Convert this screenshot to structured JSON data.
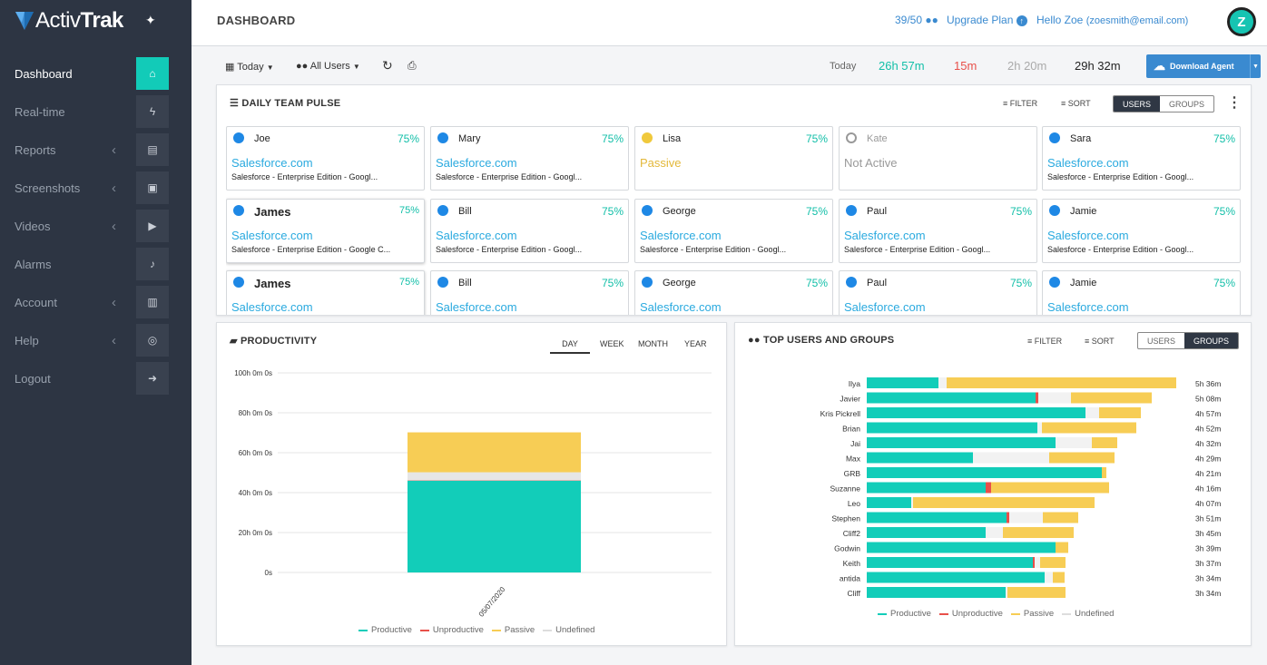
{
  "brand": {
    "light": "Activ",
    "bold": "Trak"
  },
  "sidebar": {
    "items": [
      {
        "label": "Dashboard",
        "icon": "home-icon",
        "glyph": "⌂",
        "active": true,
        "chevron": false
      },
      {
        "label": "Real-time",
        "icon": "bolt-icon",
        "glyph": "ϟ",
        "active": false,
        "chevron": false
      },
      {
        "label": "Reports",
        "icon": "report-icon",
        "glyph": "▤",
        "active": false,
        "chevron": true
      },
      {
        "label": "Screenshots",
        "icon": "screenshots-icon",
        "glyph": "▣",
        "active": false,
        "chevron": true
      },
      {
        "label": "Videos",
        "icon": "video-icon",
        "glyph": "▶",
        "active": false,
        "chevron": true
      },
      {
        "label": "Alarms",
        "icon": "bell-icon",
        "glyph": "♪",
        "active": false,
        "chevron": false
      },
      {
        "label": "Account",
        "icon": "book-icon",
        "glyph": "▥",
        "active": false,
        "chevron": true
      },
      {
        "label": "Help",
        "icon": "help-icon",
        "glyph": "◎",
        "active": false,
        "chevron": true
      },
      {
        "label": "Logout",
        "icon": "logout-icon",
        "glyph": "➜",
        "active": false,
        "chevron": false
      }
    ]
  },
  "header": {
    "title": "DASHBOARD",
    "usage": "39/50",
    "upgrade": "Upgrade Plan",
    "hello": "Hello Zoe",
    "email": "(zoesmith@email.com)",
    "avatar": "Z"
  },
  "toolbar": {
    "date_filter": "Today",
    "user_filter": "All Users",
    "stats_label": "Today",
    "productive": "26h 57m",
    "unproductive": "15m",
    "undefined": "2h 20m",
    "total": "29h 32m",
    "download": "Download Agent"
  },
  "colors": {
    "productive": "#12cdb9",
    "unproductive": "#e8504a",
    "passive": "#f7cd55",
    "undefined": "#e6e6e6",
    "accent": "#3a8ad0"
  },
  "pulse": {
    "title": "DAILY TEAM PULSE",
    "filter": "FILTER",
    "sort": "SORT",
    "toggle": [
      "USERS",
      "GROUPS"
    ],
    "cards": [
      {
        "name": "Joe",
        "pct": "75%",
        "site": "Salesforce.com",
        "detail": "Salesforce - Enterprise Edition - Googl...",
        "status": "active"
      },
      {
        "name": "Mary",
        "pct": "75%",
        "site": "Salesforce.com",
        "detail": "Salesforce - Enterprise Edition - Googl...",
        "status": "active"
      },
      {
        "name": "Lisa",
        "pct": "75%",
        "site": "Passive",
        "detail": "",
        "status": "passive"
      },
      {
        "name": "Kate",
        "pct": "",
        "site": "Not Active",
        "detail": "",
        "status": "inactive"
      },
      {
        "name": "Sara",
        "pct": "75%",
        "site": "Salesforce.com",
        "detail": "Salesforce - Enterprise Edition - Googl...",
        "status": "active"
      },
      {
        "name": "James",
        "pct": "75%",
        "site": "Salesforce.com",
        "detail": "Salesforce - Enterprise Edition - Google C...",
        "status": "active",
        "big": true
      },
      {
        "name": "Bill",
        "pct": "75%",
        "site": "Salesforce.com",
        "detail": "Salesforce - Enterprise Edition - Googl...",
        "status": "active"
      },
      {
        "name": "George",
        "pct": "75%",
        "site": "Salesforce.com",
        "detail": "Salesforce - Enterprise Edition - Googl...",
        "status": "active"
      },
      {
        "name": "Paul",
        "pct": "75%",
        "site": "Salesforce.com",
        "detail": "Salesforce - Enterprise Edition - Googl...",
        "status": "active"
      },
      {
        "name": "Jamie",
        "pct": "75%",
        "site": "Salesforce.com",
        "detail": "Salesforce - Enterprise Edition - Googl...",
        "status": "active"
      },
      {
        "name": "James",
        "pct": "75%",
        "site": "Salesforce.com",
        "detail": "",
        "status": "active",
        "big": true
      },
      {
        "name": "Bill",
        "pct": "75%",
        "site": "Salesforce.com",
        "detail": "",
        "status": "active"
      },
      {
        "name": "George",
        "pct": "75%",
        "site": "Salesforce.com",
        "detail": "",
        "status": "active"
      },
      {
        "name": "Paul",
        "pct": "75%",
        "site": "Salesforce.com",
        "detail": "",
        "status": "active"
      },
      {
        "name": "Jamie",
        "pct": "75%",
        "site": "Salesforce.com",
        "detail": "",
        "status": "active"
      }
    ]
  },
  "productivity": {
    "title": "PRODUCTIVITY",
    "tabs": [
      "DAY",
      "WEEK",
      "MONTH",
      "YEAR"
    ],
    "active_tab": "DAY",
    "legend": [
      "Productive",
      "Unproductive",
      "Passive",
      "Undefined"
    ]
  },
  "top_users": {
    "title": "TOP USERS AND GROUPS",
    "filter": "FILTER",
    "sort": "SORT",
    "toggle": [
      "USERS",
      "GROUPS"
    ],
    "legend": [
      "Productive",
      "Unproductive",
      "Passive",
      "Undefined"
    ]
  },
  "chart_data": [
    {
      "type": "bar",
      "stacked": true,
      "categories": [
        "05/07/2020"
      ],
      "series": [
        {
          "name": "Productive",
          "values": [
            46
          ]
        },
        {
          "name": "Unproductive",
          "values": [
            0.2
          ]
        },
        {
          "name": "Passive",
          "values": [
            20
          ]
        },
        {
          "name": "Undefined",
          "values": [
            4
          ]
        }
      ],
      "yticks": [
        "0s",
        "20h 0m 0s",
        "40h 0m 0s",
        "60h 0m 0s",
        "80h 0m 0s",
        "100h 0m 0s"
      ],
      "ylim": [
        0,
        100
      ],
      "legend": "bottom"
    },
    {
      "type": "bar",
      "orientation": "horizontal",
      "stacked": true,
      "categories": [
        "Ilya",
        "Javier",
        "Kris Pickrell",
        "Brian",
        "Jai",
        "Max",
        "GRB",
        "Suzanne",
        "Leo",
        "Stephen",
        "Cliff2",
        "Godwin",
        "Keith",
        "antida",
        "Cliff"
      ],
      "totals": [
        "5h 36m",
        "5h 08m",
        "4h 57m",
        "4h 52m",
        "4h 32m",
        "4h 29m",
        "4h 21m",
        "4h 16m",
        "4h 07m",
        "3h 51m",
        "3h 45m",
        "3h 39m",
        "3h 37m",
        "3h 34m",
        "3h 34m"
      ],
      "series": [
        {
          "name": "Productive",
          "values": [
            79,
            186,
            241,
            188,
            208,
            117,
            259,
            131,
            49,
            154,
            131,
            208,
            183,
            196,
            153
          ]
        },
        {
          "name": "Unproductive",
          "values": [
            0,
            3,
            0,
            0,
            0,
            0,
            0,
            6,
            0,
            3,
            0,
            0,
            2,
            0,
            0
          ]
        },
        {
          "name": "Undefined",
          "values": [
            9,
            36,
            15,
            5,
            40,
            84,
            0,
            0,
            2,
            37,
            19,
            0,
            6,
            9,
            2
          ]
        },
        {
          "name": "Passive",
          "values": [
            253,
            89,
            46,
            104,
            28,
            72,
            5,
            130,
            200,
            39,
            78,
            14,
            28,
            13,
            64
          ]
        }
      ],
      "legend": "bottom"
    }
  ]
}
